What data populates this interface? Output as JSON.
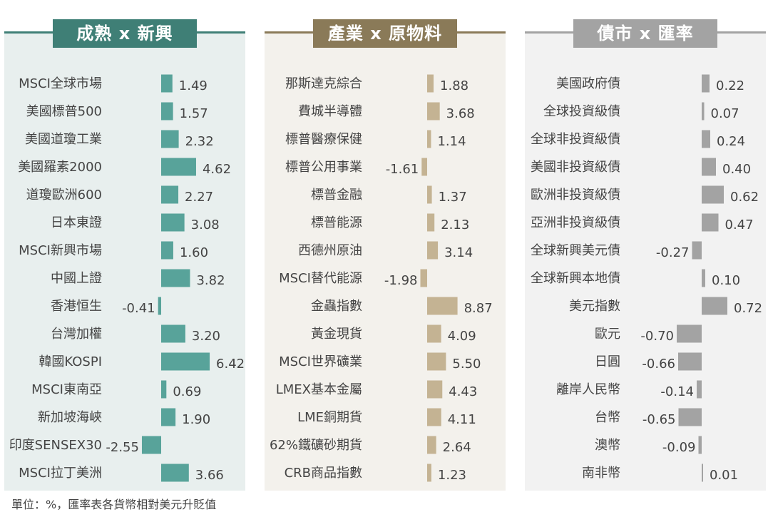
{
  "footnote": "單位：%，匯率表各貨幣相對美元升貶值",
  "panels": [
    {
      "id": "mature",
      "title": "成熟 x 新興",
      "head_color": "#3f7f76",
      "line_color": "#3f7f76",
      "bg": "#e8efee",
      "bar_color": "#58a39a"
    },
    {
      "id": "industry",
      "title": "產業 x 原物料",
      "head_color": "#8a7a58",
      "line_color": "#8a7a58",
      "bg": "#f3f1ec",
      "bar_color": "#c4b393"
    },
    {
      "id": "bond",
      "title": "債市 x 匯率",
      "head_color": "#a3a3a3",
      "line_color": "#a3a3a3",
      "bg": "#f2f2f2",
      "bar_color": "#a3a3a3"
    }
  ],
  "chart_data": [
    {
      "type": "bar",
      "orientation": "horizontal",
      "title": "成熟 x 新興",
      "categories": [
        "MSCI全球市場",
        "美國標普500",
        "美國道瓊工業",
        "美國羅素2000",
        "道瓊歐洲600",
        "日本東證",
        "MSCI新興市場",
        "中國上證",
        "香港恒生",
        "台灣加權",
        "韓國KOSPI",
        "MSCI東南亞",
        "新加坡海峽",
        "印度SENSEX30",
        "MSCI拉丁美洲"
      ],
      "values": [
        1.49,
        1.57,
        2.32,
        4.62,
        2.27,
        3.08,
        1.6,
        3.82,
        -0.41,
        3.2,
        6.42,
        0.69,
        1.9,
        -2.55,
        3.66
      ],
      "labels": [
        "1.49",
        "1.57",
        "2.32",
        "4.62",
        "2.27",
        "3.08",
        "1.60",
        "3.82",
        "-0.41",
        "3.20",
        "6.42",
        "0.69",
        "1.90",
        "-2.55",
        "3.66"
      ]
    },
    {
      "type": "bar",
      "orientation": "horizontal",
      "title": "產業 x 原物料",
      "categories": [
        "那斯達克綜合",
        "費城半導體",
        "標普醫療保健",
        "標普公用事業",
        "標普金融",
        "標普能源",
        "西德州原油",
        "MSCI替代能源",
        "金蟲指數",
        "黃金現貨",
        "MSCI世界礦業",
        "LMEX基本金屬",
        "LME銅期貨",
        "62%鐵礦砂期貨",
        "CRB商品指數"
      ],
      "values": [
        1.88,
        3.68,
        1.14,
        -1.61,
        1.37,
        2.13,
        3.14,
        -1.98,
        8.87,
        4.09,
        5.5,
        4.43,
        4.11,
        2.64,
        1.23
      ],
      "labels": [
        "1.88",
        "3.68",
        "1.14",
        "-1.61",
        "1.37",
        "2.13",
        "3.14",
        "-1.98",
        "8.87",
        "4.09",
        "5.50",
        "4.43",
        "4.11",
        "2.64",
        "1.23"
      ]
    },
    {
      "type": "bar",
      "orientation": "horizontal",
      "title": "債市 x 匯率",
      "categories": [
        "美國政府債",
        "全球投資級債",
        "全球非投資級債",
        "美國非投資級債",
        "歐洲非投資級債",
        "亞洲非投資級債",
        "全球新興美元債",
        "全球新興本地債",
        "美元指數",
        "歐元",
        "日圓",
        "離岸人民幣",
        "台幣",
        "澳幣",
        "南非幣"
      ],
      "values": [
        0.22,
        0.07,
        0.24,
        0.4,
        0.62,
        0.47,
        -0.27,
        0.1,
        0.72,
        -0.7,
        -0.66,
        -0.14,
        -0.65,
        -0.09,
        0.01
      ],
      "labels": [
        "0.22",
        "0.07",
        "0.24",
        "0.40",
        "0.62",
        "0.47",
        "-0.27",
        "0.10",
        "0.72",
        "-0.70",
        "-0.66",
        "-0.14",
        "-0.65",
        "-0.09",
        "0.01"
      ]
    }
  ]
}
